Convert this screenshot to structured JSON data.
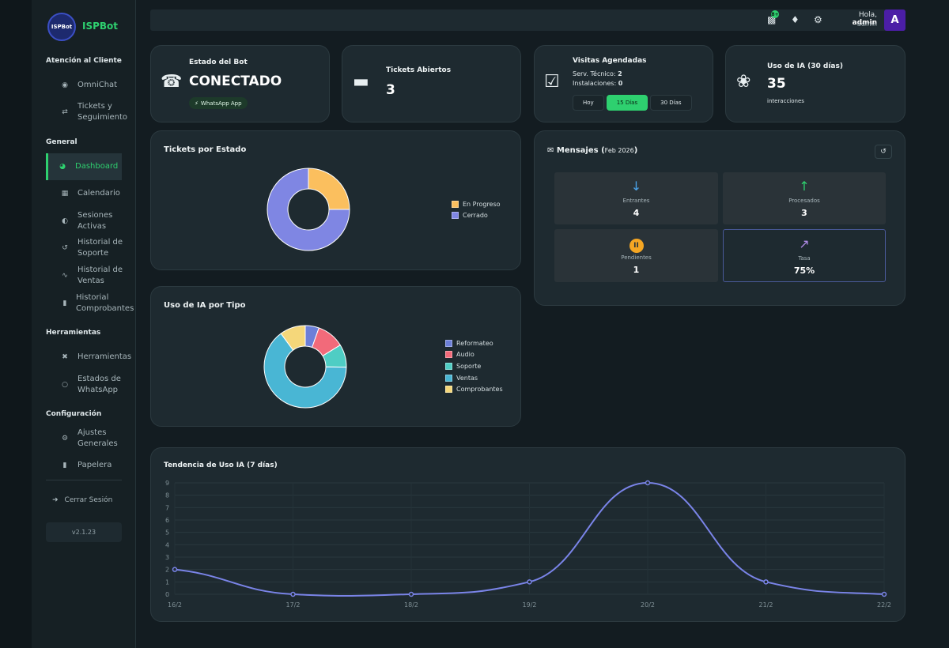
{
  "brand": {
    "name": "ISPBot",
    "logo_text": "ISPBot"
  },
  "sidebar": {
    "sections": [
      {
        "title": "Atención al Cliente"
      },
      {
        "title": "General"
      },
      {
        "title": "Herramientas"
      },
      {
        "title": "Configuración"
      }
    ],
    "items": [
      {
        "label": "OmniChat",
        "icon": "chat-icon"
      },
      {
        "label": "Tickets y Seguimiento",
        "icon": "shuffle-icon"
      },
      {
        "label": "Dashboard",
        "icon": "dashboard-icon",
        "active": true
      },
      {
        "label": "Calendario",
        "icon": "calendar-icon"
      },
      {
        "label": "Sesiones Activas",
        "icon": "sessions-icon"
      },
      {
        "label": "Historial de Soporte",
        "icon": "history-icon"
      },
      {
        "label": "Historial de Ventas",
        "icon": "chart-line-icon"
      },
      {
        "label": "Historial Comprobantes",
        "icon": "receipt-icon"
      },
      {
        "label": "Herramientas",
        "icon": "tools-icon"
      },
      {
        "label": "Estados de WhatsApp",
        "icon": "circle-icon"
      },
      {
        "label": "Ajustes Generales",
        "icon": "gear-icon"
      },
      {
        "label": "Papelera",
        "icon": "trash-icon"
      }
    ],
    "logout_label": "Cerrar Sesión",
    "version": "v2.1.23"
  },
  "topbar": {
    "badge_count": "8+",
    "greeting": "Hola,",
    "user_name": "admin",
    "user_role": "admin",
    "avatar_letter": "A"
  },
  "cards": {
    "bot_status": {
      "title": "Estado del Bot",
      "value": "CONECTADO",
      "pill": "WhatsApp App"
    },
    "open_tickets": {
      "title": "Tickets Abiertos",
      "value": "3"
    },
    "visits": {
      "title": "Visitas Agendadas",
      "tech_label": "Serv. Técnico:",
      "tech_value": "2",
      "install_label": "Instalaciones:",
      "install_value": "0",
      "filters": [
        "Hoy",
        "15 Días",
        "30 Días"
      ],
      "active_filter": "15 Días"
    },
    "ai_usage": {
      "title": "Uso de IA (30 días)",
      "value": "35",
      "sub": "interacciones"
    }
  },
  "tickets_chart": {
    "title": "Tickets por Estado",
    "legend": [
      "En Progreso",
      "Cerrado"
    ]
  },
  "ai_type_chart": {
    "title": "Uso de IA por Tipo",
    "legend": [
      "Reformateo",
      "Audio",
      "Soporte",
      "Ventas",
      "Comprobantes"
    ]
  },
  "messages": {
    "title": "Mensajes",
    "period": "Feb 2026",
    "tiles": [
      {
        "label": "Entrantes",
        "value": "4",
        "icon": "arrow-down-icon"
      },
      {
        "label": "Procesados",
        "value": "3",
        "icon": "arrow-up-icon"
      },
      {
        "label": "Pendientes",
        "value": "1",
        "icon": "pause-icon"
      },
      {
        "label": "Tasa",
        "value": "75%",
        "icon": "trend-icon"
      }
    ]
  },
  "trend_chart": {
    "title": "Tendencia de Uso IA (7 días)"
  },
  "colors": {
    "accent": "#2ed06f",
    "in_progress": "#fbbf5e",
    "closed": "#7f86e3",
    "reformateo": "#6c7fd8",
    "audio": "#f26a7a",
    "soporte": "#4fcdc4",
    "ventas": "#49b6d4",
    "comprobantes": "#f5d77a",
    "line": "#7a84e8"
  },
  "chart_data": [
    {
      "type": "pie",
      "title": "Tickets por Estado",
      "categories": [
        "En Progreso",
        "Cerrado"
      ],
      "values": [
        1,
        3
      ]
    },
    {
      "type": "pie",
      "title": "Uso de IA por Tipo",
      "categories": [
        "Reformateo",
        "Audio",
        "Soporte",
        "Ventas",
        "Comprobantes"
      ],
      "values": [
        1.5,
        3,
        2.5,
        18,
        2.8
      ]
    },
    {
      "type": "line",
      "title": "Tendencia de Uso IA (7 días)",
      "categories": [
        "16/2",
        "17/2",
        "18/2",
        "19/2",
        "20/2",
        "21/2",
        "22/2"
      ],
      "values": [
        2,
        0,
        0,
        1,
        9,
        1,
        0
      ],
      "yticks": [
        "0",
        "1",
        "2",
        "3",
        "4",
        "5",
        "6",
        "7",
        "8",
        "9"
      ],
      "ylim": [
        0,
        9
      ],
      "grid": true
    }
  ]
}
